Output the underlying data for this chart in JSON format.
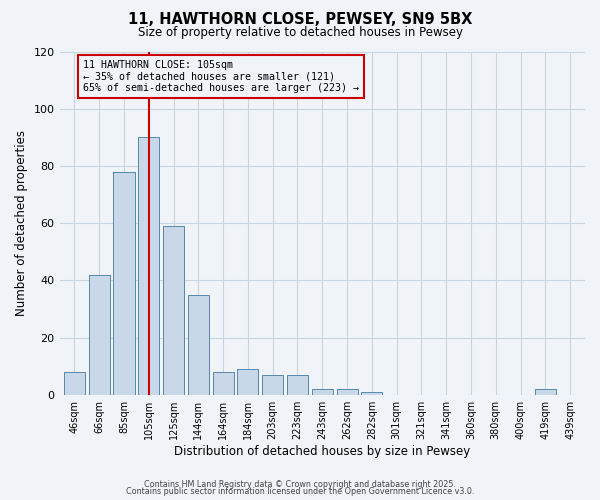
{
  "title": "11, HAWTHORN CLOSE, PEWSEY, SN9 5BX",
  "subtitle": "Size of property relative to detached houses in Pewsey",
  "xlabel": "Distribution of detached houses by size in Pewsey",
  "ylabel": "Number of detached properties",
  "categories": [
    "46sqm",
    "66sqm",
    "85sqm",
    "105sqm",
    "125sqm",
    "144sqm",
    "164sqm",
    "184sqm",
    "203sqm",
    "223sqm",
    "243sqm",
    "262sqm",
    "282sqm",
    "301sqm",
    "321sqm",
    "341sqm",
    "360sqm",
    "380sqm",
    "400sqm",
    "419sqm",
    "439sqm"
  ],
  "values": [
    8,
    42,
    78,
    90,
    59,
    35,
    8,
    9,
    7,
    7,
    2,
    2,
    1,
    0,
    0,
    0,
    0,
    0,
    0,
    2,
    0
  ],
  "bar_color": "#c8d8e8",
  "bar_edge_color": "#5588aa",
  "vline_x_index": 3,
  "vline_color": "#cc0000",
  "annotation_line1": "11 HAWTHORN CLOSE: 105sqm",
  "annotation_line2": "← 35% of detached houses are smaller (121)",
  "annotation_line3": "65% of semi-detached houses are larger (223) →",
  "annotation_box_edge_color": "#cc0000",
  "annotation_box_facecolor": "#f0f4f8",
  "ylim": [
    0,
    120
  ],
  "yticks": [
    0,
    20,
    40,
    60,
    80,
    100,
    120
  ],
  "grid_color": "#c8d4e0",
  "bg_color": "#f0f4f8",
  "footer_line1": "Contains HM Land Registry data © Crown copyright and database right 2025.",
  "footer_line2": "Contains public sector information licensed under the Open Government Licence v3.0."
}
